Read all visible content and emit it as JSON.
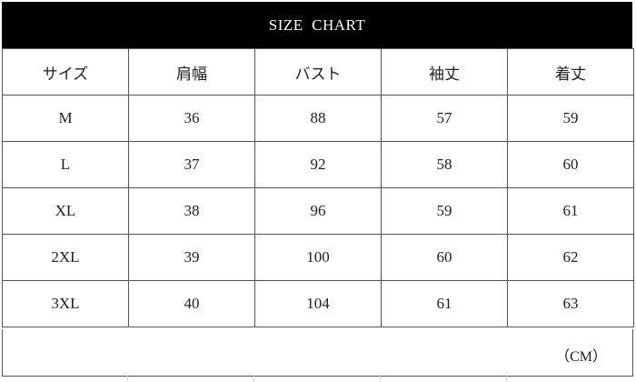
{
  "title": "SIZE  CHART",
  "headers": [
    "サイズ",
    "肩幅",
    "バスト",
    "袖丈",
    "着丈"
  ],
  "rows": [
    [
      "M",
      "36",
      "88",
      "57",
      "59"
    ],
    [
      "L",
      "37",
      "92",
      "58",
      "60"
    ],
    [
      "XL",
      "38",
      "96",
      "59",
      "61"
    ],
    [
      "2XL",
      "39",
      "100",
      "60",
      "62"
    ],
    [
      "3XL",
      "40",
      "104",
      "61",
      "63"
    ]
  ],
  "unit": "（CM）"
}
